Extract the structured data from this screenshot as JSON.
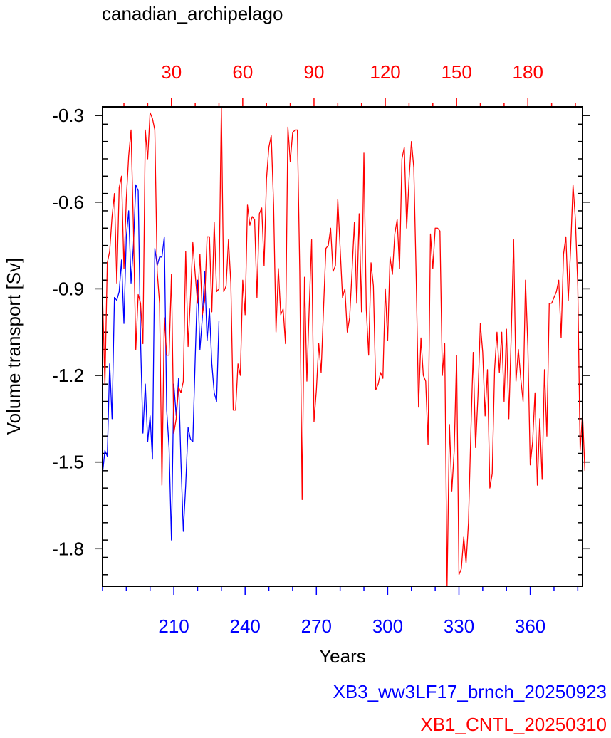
{
  "chart_data": {
    "type": "line",
    "title": "canadian_archipelago",
    "xlabel": "Years",
    "ylabel": "Volume transport [Sv]",
    "ylim": [
      -1.93,
      -0.27
    ],
    "yticks": [
      -0.3,
      -0.6,
      -0.9,
      -1.2,
      -1.5,
      -1.8
    ],
    "ytick_labels": [
      "-0.3",
      "-0.6",
      "-0.9",
      "-1.2",
      "-1.5",
      "-1.8"
    ],
    "grid": false,
    "bottom_axis": {
      "color": "#0000ff",
      "range": [
        180,
        382
      ],
      "ticks": [
        210,
        240,
        270,
        300,
        330,
        360
      ],
      "tick_labels": [
        "210",
        "240",
        "270",
        "300",
        "330",
        "360"
      ]
    },
    "top_axis": {
      "color": "#ff0000",
      "range": [
        1,
        203
      ],
      "ticks": [
        30,
        60,
        90,
        120,
        150,
        180
      ],
      "tick_labels": [
        "30",
        "60",
        "90",
        "120",
        "150",
        "180"
      ]
    },
    "legend_position": "bottom-right, below plot",
    "series": [
      {
        "name": "XB3_ww3LF17_brnch_20250923",
        "color": "#0000ff",
        "axis": "bottom",
        "x_start": 180,
        "values": [
          -1.54,
          -1.46,
          -1.48,
          -1.16,
          -1.35,
          -0.93,
          -0.94,
          -0.91,
          -0.8,
          -1.02,
          -0.72,
          -0.63,
          -0.88,
          -0.75,
          -0.54,
          -0.56,
          -1.08,
          -1.4,
          -1.23,
          -1.43,
          -1.34,
          -1.49,
          -0.76,
          -0.82,
          -0.79,
          -0.79,
          -0.72,
          -1.32,
          -1.45,
          -1.77,
          -1.23,
          -1.34,
          -1.21,
          -1.5,
          -1.74,
          -1.58,
          -1.38,
          -1.42,
          -1.43,
          -1.14,
          -0.87,
          -1.11,
          -1.0,
          -0.84,
          -1.08,
          -0.97,
          -1.16,
          -1.26,
          -1.29,
          -1.01
        ]
      },
      {
        "name": "XB1_CNTL_20250310",
        "color": "#ff0000",
        "axis": "top",
        "x_start": 1,
        "values": [
          -0.92,
          -1.23,
          -0.81,
          -0.77,
          -0.65,
          -0.57,
          -0.88,
          -0.55,
          -0.51,
          -0.83,
          -0.59,
          -0.44,
          -0.35,
          -0.69,
          -1.11,
          -0.92,
          -0.95,
          -1.09,
          -0.35,
          -0.45,
          -0.29,
          -0.31,
          -0.35,
          -0.84,
          -0.95,
          -1.58,
          -1.0,
          -1.13,
          -1.13,
          -0.85,
          -1.4,
          -1.35,
          -1.24,
          -1.26,
          -1.22,
          -0.77,
          -1.1,
          -0.93,
          -0.74,
          -0.85,
          -0.95,
          -0.78,
          -0.99,
          -0.94,
          -0.72,
          -0.72,
          -0.98,
          -0.67,
          -0.91,
          -0.9,
          -0.27,
          -0.91,
          -0.89,
          -0.73,
          -0.88,
          -1.32,
          -1.32,
          -1.16,
          -1.2,
          -0.87,
          -0.99,
          -0.61,
          -0.68,
          -0.65,
          -0.66,
          -0.93,
          -0.64,
          -0.62,
          -0.82,
          -0.52,
          -0.41,
          -0.37,
          -0.61,
          -1.05,
          -0.83,
          -0.99,
          -0.97,
          -1.09,
          -0.34,
          -0.46,
          -0.36,
          -0.35,
          -0.35,
          -0.84,
          -1.63,
          -0.86,
          -1.22,
          -0.96,
          -0.73,
          -1.36,
          -1.25,
          -1.09,
          -1.19,
          -0.97,
          -0.76,
          -0.75,
          -0.69,
          -0.84,
          -0.82,
          -0.59,
          -0.76,
          -0.93,
          -0.9,
          -1.05,
          -1.0,
          -0.84,
          -0.67,
          -0.95,
          -0.64,
          -0.98,
          -0.43,
          -0.97,
          -1.13,
          -0.81,
          -0.89,
          -1.25,
          -1.23,
          -1.19,
          -1.21,
          -0.9,
          -1.08,
          -0.79,
          -0.85,
          -0.71,
          -0.66,
          -0.83,
          -0.45,
          -0.41,
          -0.69,
          -0.52,
          -0.39,
          -0.48,
          -0.86,
          -1.31,
          -1.07,
          -1.2,
          -1.22,
          -1.44,
          -0.71,
          -0.83,
          -0.69,
          -0.69,
          -0.7,
          -1.2,
          -1.09,
          -1.93,
          -1.37,
          -1.6,
          -1.46,
          -1.13,
          -1.89,
          -1.87,
          -1.76,
          -1.85,
          -1.71,
          -1.4,
          -1.12,
          -1.45,
          -1.27,
          -1.02,
          -1.12,
          -1.34,
          -1.18,
          -1.59,
          -1.54,
          -1.18,
          -1.05,
          -1.19,
          -1.05,
          -1.29,
          -1.04,
          -1.35,
          -1.06,
          -0.73,
          -1.22,
          -1.11,
          -1.21,
          -1.29,
          -0.87,
          -1.1,
          -1.51,
          -1.43,
          -1.26,
          -1.58,
          -1.35,
          -1.56,
          -1.18,
          -1.41,
          -0.95,
          -0.95,
          -0.93,
          -0.91,
          -0.87,
          -1.07,
          -0.78,
          -0.72,
          -0.94,
          -0.76,
          -0.54,
          -0.66,
          -0.89,
          -1.46,
          -1.33,
          -1.53
        ]
      }
    ]
  }
}
